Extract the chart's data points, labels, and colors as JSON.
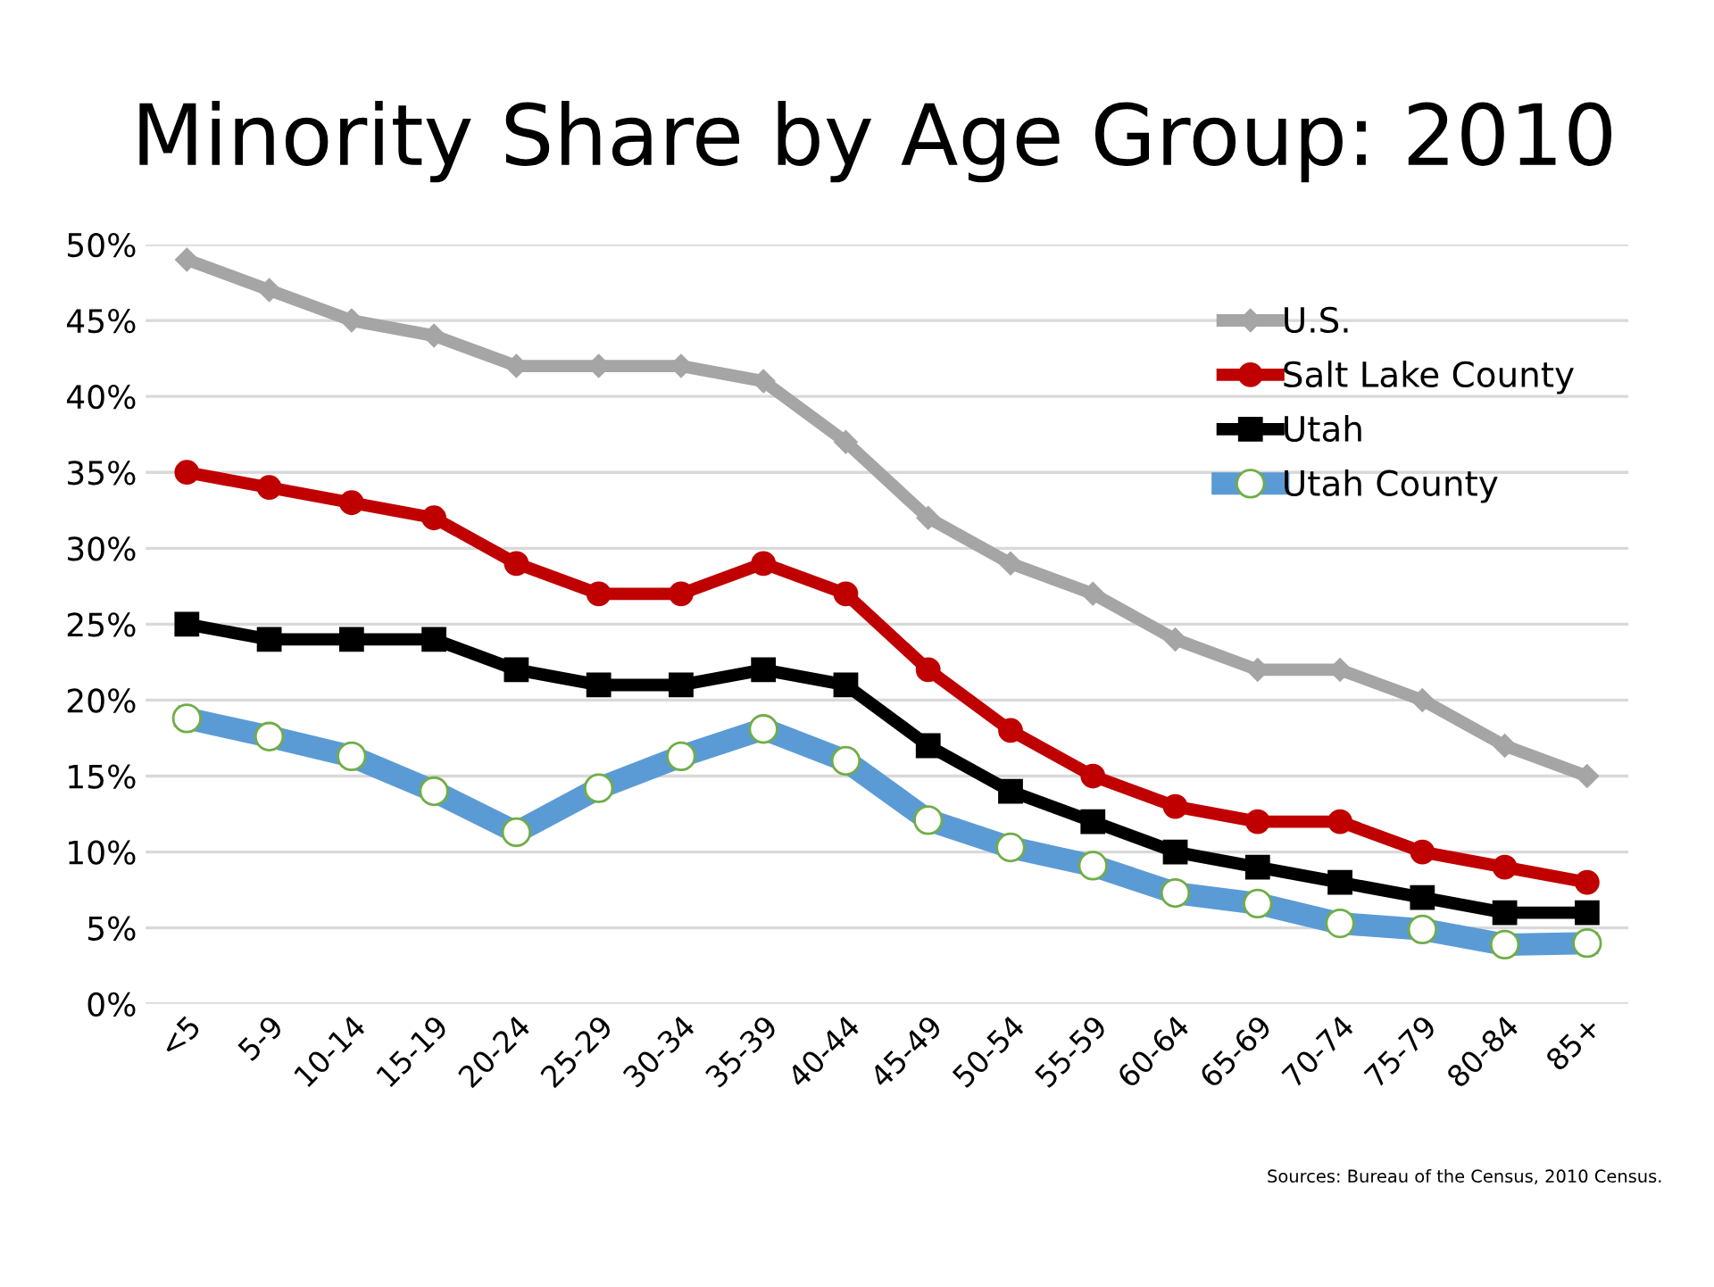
{
  "chart_data": {
    "type": "line",
    "title": "Minority Share by Age Group: 2010",
    "categories": [
      "<5",
      "5-9",
      "10-14",
      "15-19",
      "20-24",
      "25-29",
      "30-34",
      "35-39",
      "40-44",
      "45-49",
      "50-54",
      "55-59",
      "60-64",
      "65-69",
      "70-74",
      "75-79",
      "80-84",
      "85+"
    ],
    "series": [
      {
        "name": "U.S.",
        "color": "#a5a5a5",
        "marker": "diamond",
        "values": [
          49,
          47,
          45,
          44,
          42,
          42,
          42,
          41,
          37,
          32,
          29,
          27,
          24,
          22,
          22,
          20,
          17,
          15
        ]
      },
      {
        "name": "Salt Lake County",
        "color": "#c00000",
        "marker": "circle",
        "values": [
          35,
          34,
          33,
          32,
          29,
          27,
          27,
          29,
          27,
          22,
          18,
          15,
          13,
          12,
          12,
          10,
          9,
          8
        ]
      },
      {
        "name": "Utah",
        "color": "#000000",
        "marker": "square",
        "values": [
          25,
          24,
          24,
          24,
          22,
          21,
          21,
          22,
          21,
          17,
          14,
          12,
          10,
          9,
          8,
          7,
          6,
          6
        ]
      },
      {
        "name": "Utah County",
        "color": "#5b9bd5",
        "marker": "circle",
        "values": [
          18.8,
          17.6,
          16.3,
          14.0,
          11.3,
          14.2,
          16.3,
          18.1,
          16.0,
          12.1,
          10.3,
          9.1,
          7.3,
          6.6,
          5.3,
          4.9,
          3.9,
          4.0
        ]
      }
    ],
    "ylim": [
      0,
      50
    ],
    "yticks": [
      {
        "value": 0,
        "label": "0%"
      },
      {
        "value": 5,
        "label": "5%"
      },
      {
        "value": 10,
        "label": "10%"
      },
      {
        "value": 15,
        "label": "15%"
      },
      {
        "value": 20,
        "label": "20%"
      },
      {
        "value": 25,
        "label": "25%"
      },
      {
        "value": 30,
        "label": "30%"
      },
      {
        "value": 35,
        "label": "35%"
      },
      {
        "value": 40,
        "label": "40%"
      },
      {
        "value": 45,
        "label": "45%"
      },
      {
        "value": 50,
        "label": "50%"
      }
    ],
    "grid": "y",
    "legend": "top right",
    "line_style": "solid",
    "annotations": [
      "Sources: Bureau of the Census, 2010 Census."
    ]
  }
}
